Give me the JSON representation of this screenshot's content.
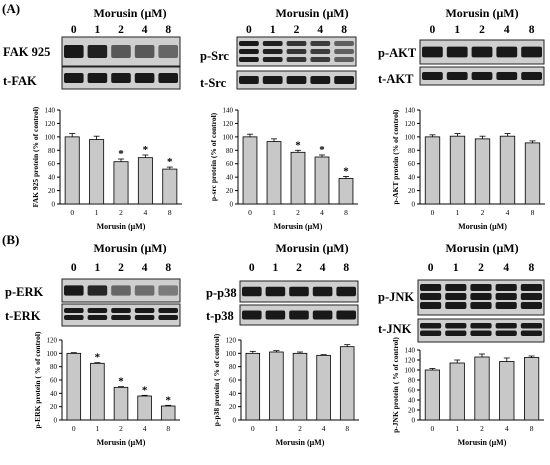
{
  "panel_labels": [
    "(A)",
    "(B)"
  ],
  "chart_data": [
    {
      "type": "bar",
      "header": "Morusin (μM)",
      "lanes": [
        "0",
        "1",
        "2",
        "4",
        "8"
      ],
      "blots": [
        "FAK 925",
        "t-FAK"
      ],
      "categories": [
        "0",
        "1",
        "2",
        "4",
        "8"
      ],
      "values": [
        100,
        96,
        63,
        69,
        52
      ],
      "errors": [
        5,
        5,
        4,
        4,
        3
      ],
      "significant": [
        false,
        false,
        true,
        true,
        true
      ],
      "xlabel": "Morusin (μM)",
      "ylabel": "FAK 925 protein (% of control)",
      "ylim": [
        0,
        140
      ],
      "yticks": [
        0,
        20,
        40,
        60,
        80,
        100,
        120,
        140
      ],
      "grid": false
    },
    {
      "type": "bar",
      "header": "Morusin (μM)",
      "lanes": [
        "0",
        "1",
        "2",
        "4",
        "8"
      ],
      "blots": [
        "p-Src",
        "t-Src"
      ],
      "categories": [
        "0",
        "1",
        "2",
        "4",
        "8"
      ],
      "values": [
        100,
        93,
        77,
        70,
        38
      ],
      "errors": [
        4,
        4,
        3,
        3,
        3
      ],
      "significant": [
        false,
        false,
        true,
        true,
        true
      ],
      "xlabel": "Morusin (μM)",
      "ylabel": "p-src protein (% of control)",
      "ylim": [
        0,
        140
      ],
      "yticks": [
        0,
        20,
        40,
        60,
        80,
        100,
        120,
        140
      ],
      "grid": false
    },
    {
      "type": "bar",
      "header": "Morusin (μM)",
      "lanes": [
        "0",
        "1",
        "2",
        "4",
        "8"
      ],
      "blots": [
        "p-AKT",
        "t-AKT"
      ],
      "categories": [
        "0",
        "1",
        "2",
        "4",
        "8"
      ],
      "values": [
        100,
        101,
        97,
        101,
        91
      ],
      "errors": [
        3,
        4,
        4,
        4,
        3
      ],
      "significant": [
        false,
        false,
        false,
        false,
        false
      ],
      "xlabel": "Morusin (μM)",
      "ylabel": "p-AKT protein (% of control)",
      "ylim": [
        0,
        140
      ],
      "yticks": [
        0,
        20,
        40,
        60,
        80,
        100,
        120,
        140
      ],
      "grid": false
    },
    {
      "type": "bar",
      "header": "Morusin (μM)",
      "lanes": [
        "0",
        "1",
        "2",
        "4",
        "8"
      ],
      "blots": [
        "p-ERK",
        "t-ERK"
      ],
      "categories": [
        "0",
        "1",
        "2",
        "4",
        "8"
      ],
      "values": [
        100,
        85,
        49,
        36,
        21
      ],
      "errors": [
        1,
        1,
        1,
        1,
        1
      ],
      "significant": [
        false,
        true,
        true,
        true,
        true
      ],
      "xlabel": "Morusin (μM)",
      "ylabel": "p-ERK protein ( % of control)",
      "ylim": [
        0,
        120
      ],
      "yticks": [
        0,
        20,
        40,
        60,
        80,
        100,
        120
      ],
      "grid": false
    },
    {
      "type": "bar",
      "header": "Morusin (μM)",
      "lanes": [
        "0",
        "1",
        "2",
        "4",
        "8"
      ],
      "blots": [
        "p-p38",
        "t-p38"
      ],
      "categories": [
        "0",
        "1",
        "2",
        "4",
        "8"
      ],
      "values": [
        100,
        102,
        100,
        97,
        110
      ],
      "errors": [
        3,
        2,
        2,
        1,
        3
      ],
      "significant": [
        false,
        false,
        false,
        false,
        false
      ],
      "xlabel": "Morusin (μM)",
      "ylabel": "p-p38 protein ( % of control)",
      "ylim": [
        0,
        120
      ],
      "yticks": [
        0,
        20,
        40,
        60,
        80,
        100,
        120
      ],
      "grid": false
    },
    {
      "type": "bar",
      "header": "Morusin (μM)",
      "lanes": [
        "0",
        "1",
        "2",
        "4",
        "8"
      ],
      "blots": [
        "p-JNK",
        "t-JNK"
      ],
      "categories": [
        "0",
        "1",
        "2",
        "4",
        "8"
      ],
      "values": [
        100,
        114,
        126,
        117,
        125
      ],
      "errors": [
        3,
        6,
        6,
        7,
        3
      ],
      "significant": [
        false,
        false,
        false,
        false,
        false
      ],
      "xlabel": "Morusin (μM)",
      "ylabel": "p-JNK protein ( % of control)",
      "ylim": [
        0,
        140
      ],
      "yticks": [
        0,
        20,
        40,
        60,
        80,
        100,
        120,
        140
      ],
      "grid": false
    }
  ]
}
